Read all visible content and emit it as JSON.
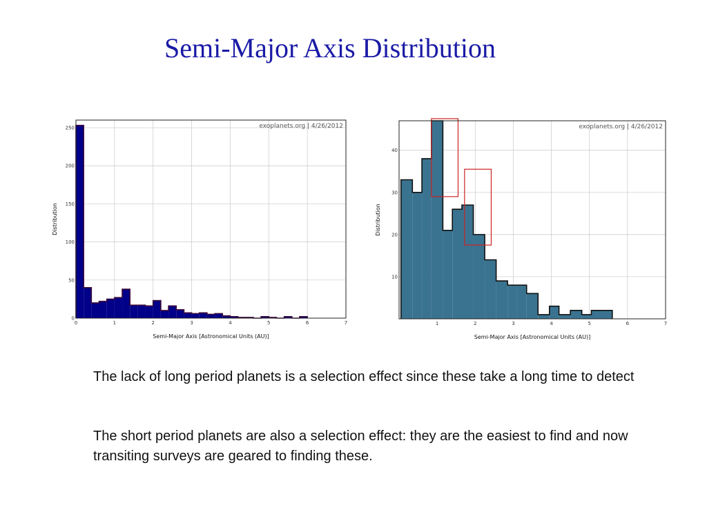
{
  "slide": {
    "title": "Semi-Major Axis Distribution",
    "paragraphs": [
      "The lack of long period planets is a selection effect since these take a long time to detect",
      "The short period planets are also a selection effect: they are the easiest to find and now transiting surveys are geared to finding these."
    ]
  },
  "chart_data": [
    {
      "type": "bar",
      "style": "histogram",
      "watermark": "exoplanets.org | 4/26/2012",
      "xlabel": "Semi-Major Axis [Astronomical Units (AU)]",
      "ylabel": "Distribution",
      "xlim": [
        0,
        7
      ],
      "ylim": [
        0,
        260
      ],
      "xticks": [
        0,
        1,
        2,
        3,
        4,
        5,
        6,
        7
      ],
      "yticks": [
        0,
        50,
        100,
        150,
        200,
        250
      ],
      "grid": true,
      "fill_color": "#000088",
      "edge_color": "#3b0a3b",
      "bin_edges": [
        0,
        0.2,
        0.4,
        0.6,
        0.8,
        1.0,
        1.2,
        1.4,
        1.6,
        1.8,
        2.0,
        2.2,
        2.4,
        2.6,
        2.8,
        3.0,
        3.2,
        3.4,
        3.6,
        3.8,
        4.0,
        4.2,
        4.4,
        4.6,
        4.8,
        5.0,
        5.2,
        5.4,
        5.6,
        5.8,
        6.0
      ],
      "values": [
        253,
        40,
        20,
        22,
        25,
        27,
        38,
        17,
        17,
        16,
        23,
        10,
        16,
        11,
        7,
        6,
        7,
        5,
        6,
        3,
        2,
        1,
        1,
        0,
        2,
        1,
        0,
        2,
        0,
        2
      ]
    },
    {
      "type": "bar",
      "style": "histogram",
      "watermark": "exoplanets.org | 4/26/2012",
      "xlabel": "Semi-Major Axis [Astronomical Units (AU)]",
      "ylabel": "Distribution",
      "xlim": [
        0,
        7
      ],
      "ylim": [
        0,
        47
      ],
      "xticks": [
        1,
        2,
        3,
        4,
        5,
        6,
        7
      ],
      "yticks": [
        10,
        20,
        30,
        40
      ],
      "grid": true,
      "fill_color": "#3a7390",
      "edge_color": "#111111",
      "bin_edges": [
        0.05,
        0.35,
        0.6,
        0.85,
        1.15,
        1.4,
        1.65,
        1.95,
        2.25,
        2.55,
        2.85,
        3.1,
        3.35,
        3.65,
        3.95,
        4.2,
        4.5,
        4.8,
        5.05,
        5.35,
        5.6
      ],
      "values": [
        33,
        30,
        38,
        47,
        21,
        26,
        27,
        20,
        14,
        9,
        8,
        8,
        6,
        1,
        3,
        1,
        2,
        1,
        2,
        2
      ],
      "highlight_color": "#cc2222",
      "highlight_boxes": [
        {
          "x0": 0.85,
          "x1": 1.55,
          "y0": 29,
          "y1": 47.5
        },
        {
          "x0": 1.72,
          "x1": 2.42,
          "y0": 17.5,
          "y1": 35.5
        }
      ]
    }
  ]
}
